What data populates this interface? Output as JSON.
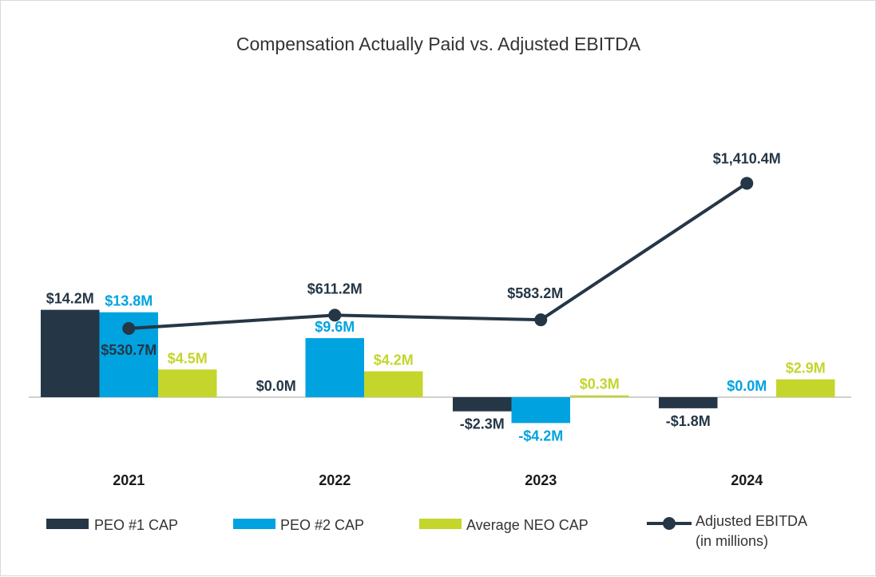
{
  "chart_data": {
    "type": "bar",
    "title": "Compensation Actually Paid vs. Adjusted EBITDA",
    "categories": [
      "2021",
      "2022",
      "2023",
      "2024"
    ],
    "series": [
      {
        "name": "PEO #1 CAP",
        "color": "#253746",
        "values": [
          14.2,
          0.0,
          -2.3,
          -1.8
        ],
        "labels": [
          "$14.2M",
          "$0.0M",
          "-$2.3M",
          "-$1.8M"
        ]
      },
      {
        "name": "PEO #2 CAP",
        "color": "#00a3e0",
        "values": [
          13.8,
          9.6,
          -4.2,
          0.0
        ],
        "labels": [
          "$13.8M",
          "$9.6M",
          "-$4.2M",
          "$0.0M"
        ]
      },
      {
        "name": "Average NEO CAP",
        "color": "#c4d52c",
        "values": [
          4.5,
          4.2,
          0.3,
          2.9
        ],
        "labels": [
          "$4.5M",
          "$4.2M",
          "$0.3M",
          "$2.9M"
        ]
      }
    ],
    "line_series": {
      "name": "Adjusted EBITDA",
      "name_line2": "(in millions)",
      "color": "#253746",
      "type": "line",
      "values": [
        530.7,
        611.2,
        583.2,
        1410.4
      ],
      "labels": [
        "$530.7M",
        "$611.2M",
        "$583.2M",
        "$1,410.4M"
      ]
    },
    "bar_axis_range": [
      -14.3,
      14.2
    ],
    "line_axis_range": [
      -950,
      1700
    ],
    "legend_position": "bottom",
    "grid": false
  }
}
